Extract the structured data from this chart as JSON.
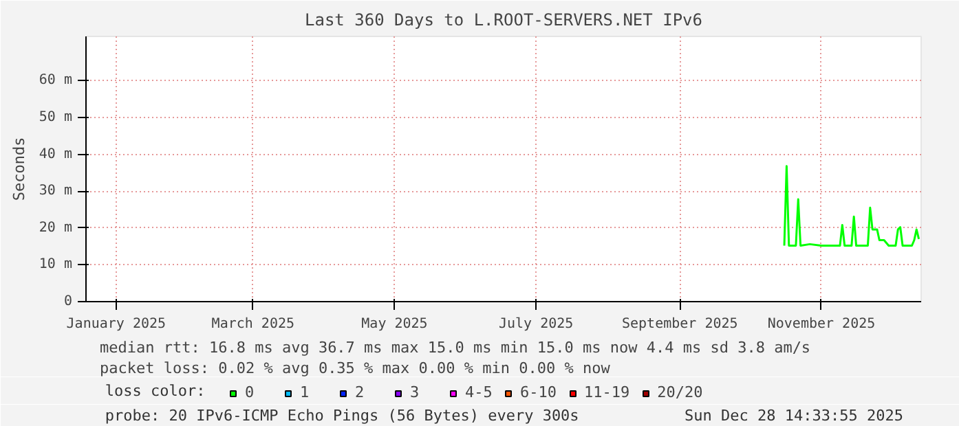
{
  "chart_data": {
    "type": "line",
    "title": "Last 360 Days to L.ROOT-SERVERS.NET IPv6",
    "ylabel": "Seconds",
    "x": [
      "2025-10-30",
      "2025-10-31",
      "2025-11-01",
      "2025-11-04",
      "2025-11-05",
      "2025-11-06",
      "2025-11-10",
      "2025-11-15",
      "2025-11-23",
      "2025-11-24",
      "2025-11-25",
      "2025-11-28",
      "2025-11-29",
      "2025-11-30",
      "2025-12-05",
      "2025-12-06",
      "2025-12-07",
      "2025-12-09",
      "2025-12-10",
      "2025-12-12",
      "2025-12-14",
      "2025-12-17",
      "2025-12-18",
      "2025-12-19",
      "2025-12-20",
      "2025-12-24",
      "2025-12-25",
      "2025-12-26",
      "2025-12-27"
    ],
    "series": [
      {
        "name": "0",
        "color": "#00ff00",
        "values": [
          15.2,
          36.8,
          15.2,
          15.2,
          27.8,
          15.2,
          15.6,
          15.2,
          15.2,
          20.8,
          15.2,
          15.2,
          23.1,
          15.2,
          15.2,
          25.5,
          19.6,
          19.6,
          16.7,
          16.7,
          15.2,
          15.2,
          19.6,
          20.2,
          15.2,
          15.2,
          16.7,
          19.6,
          17.0
        ]
      },
      {
        "name": "1",
        "color": "#00bbff",
        "values": [
          null,
          null,
          null,
          null,
          null,
          null,
          null,
          null,
          null,
          null,
          null,
          null,
          null,
          null,
          null,
          null,
          null,
          null,
          null,
          null,
          null,
          null,
          null,
          null,
          null,
          null,
          null,
          null,
          null
        ]
      },
      {
        "name": "2",
        "color": "#0022ff",
        "values": [
          null,
          null,
          null,
          null,
          null,
          null,
          null,
          null,
          null,
          null,
          null,
          null,
          null,
          null,
          null,
          null,
          null,
          null,
          null,
          null,
          null,
          null,
          null,
          null,
          null,
          null,
          null,
          null,
          null
        ]
      },
      {
        "name": "3",
        "color": "#8a00ff",
        "values": [
          null,
          null,
          null,
          null,
          null,
          null,
          null,
          null,
          null,
          null,
          null,
          null,
          null,
          null,
          null,
          null,
          null,
          null,
          null,
          null,
          null,
          null,
          null,
          null,
          null,
          null,
          null,
          null,
          null
        ]
      },
      {
        "name": "4-5",
        "color": "#ff00ff",
        "values": [
          null,
          null,
          null,
          null,
          null,
          null,
          null,
          null,
          null,
          null,
          null,
          null,
          null,
          null,
          null,
          null,
          null,
          null,
          null,
          null,
          null,
          null,
          null,
          null,
          null,
          null,
          null,
          null,
          null
        ]
      },
      {
        "name": "6-10",
        "color": "#ff5500",
        "values": [
          null,
          null,
          null,
          null,
          null,
          null,
          null,
          null,
          null,
          null,
          null,
          null,
          null,
          null,
          null,
          null,
          null,
          null,
          null,
          null,
          null,
          null,
          null,
          null,
          null,
          null,
          null,
          null,
          null
        ]
      },
      {
        "name": "11-19",
        "color": "#ff0000",
        "values": [
          null,
          null,
          null,
          null,
          null,
          null,
          null,
          null,
          null,
          null,
          null,
          null,
          null,
          null,
          null,
          null,
          null,
          null,
          null,
          null,
          null,
          null,
          null,
          null,
          null,
          null,
          null,
          null,
          null
        ]
      },
      {
        "name": "20/20",
        "color": "#a10000",
        "values": [
          null,
          null,
          null,
          null,
          null,
          null,
          null,
          null,
          null,
          null,
          null,
          null,
          null,
          null,
          null,
          null,
          null,
          null,
          null,
          null,
          null,
          null,
          null,
          null,
          null,
          null,
          null,
          null,
          null
        ]
      }
    ],
    "legend_title": "loss color:",
    "legend": "bottom",
    "xlim": [
      "2025-01-02",
      "2025-12-28"
    ],
    "xticks": [
      {
        "value": "2025-01-15",
        "label": "January 2025"
      },
      {
        "value": "2025-03-15",
        "label": "March 2025"
      },
      {
        "value": "2025-05-15",
        "label": "May 2025"
      },
      {
        "value": "2025-07-15",
        "label": "July 2025"
      },
      {
        "value": "2025-09-15",
        "label": "September 2025"
      },
      {
        "value": "2025-11-15",
        "label": "November 2025"
      }
    ],
    "ylim": [
      0,
      72
    ],
    "yticks": [
      {
        "value": 0,
        "label": "0"
      },
      {
        "value": 10,
        "label": "10 m"
      },
      {
        "value": 20,
        "label": "20 m"
      },
      {
        "value": 30,
        "label": "30 m"
      },
      {
        "value": 40,
        "label": "40 m"
      },
      {
        "value": 50,
        "label": "50 m"
      },
      {
        "value": 60,
        "label": "60 m"
      }
    ],
    "grid": true,
    "annotations": [
      "median rtt:  16.8 ms avg  36.7 ms max  15.0 ms min  15.0 ms now  4.4 ms sd  3.8   am/s",
      "packet loss: 0.02 % avg  0.35 % max  0.00 % min  0.00 % now",
      "probe:       20 IPv6-ICMP Echo Pings (56 Bytes) every 300s",
      "Sun Dec 28 14:33:55 2025"
    ]
  }
}
